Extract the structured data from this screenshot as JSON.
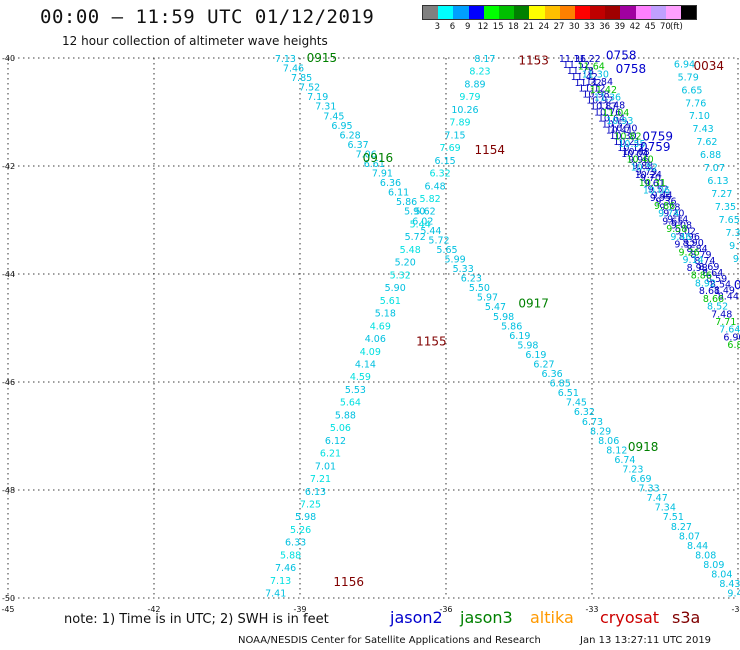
{
  "header": {
    "title": "00:00 – 11:59 UTC 01/12/2019",
    "subtitle": "12 hour collection of altimeter wave heights"
  },
  "color_scale": {
    "colors": [
      "#808080",
      "#00ffff",
      "#00a0ff",
      "#0000ff",
      "#00ff00",
      "#00c000",
      "#008000",
      "#ffff00",
      "#ffc000",
      "#ff8000",
      "#ff0000",
      "#c00000",
      "#a00000",
      "#a000a0",
      "#ff80ff",
      "#c0a0ff",
      "#ffa0ff",
      "#000000"
    ],
    "labels": [
      "3",
      "6",
      "9",
      "12",
      "15",
      "18",
      "21",
      "24",
      "27",
      "30",
      "33",
      "36",
      "39",
      "42",
      "45",
      "70",
      "(ft)"
    ]
  },
  "footer": {
    "note": "note: 1) Time is in UTC; 2) SWH is in feet",
    "legend": [
      {
        "name": "jason2",
        "color": "#0000cc"
      },
      {
        "name": "jason3",
        "color": "#008000"
      },
      {
        "name": "altika",
        "color": "#ff9900"
      },
      {
        "name": "cryosat",
        "color": "#cc0000"
      },
      {
        "name": "s3a",
        "color": "#800000"
      }
    ],
    "credit": "NOAA/NESDIS Center for Satellite Applications and Research",
    "timestamp": "Jan 13 13:27:11 UTC 2019"
  },
  "chart_data": {
    "type": "scatter",
    "xlim": [
      -45,
      -30
    ],
    "ylim": [
      -50,
      -40
    ],
    "grid": true,
    "x_ticks": [
      "-45",
      "-42",
      "-39",
      "-36",
      "-33",
      "-30"
    ],
    "y_ticks": [
      "-40",
      "-42",
      "-44",
      "-46",
      "-48",
      "-50"
    ],
    "tracks": [
      {
        "colors": [
          "#00c0e0"
        ],
        "start": [
          -39.3,
          -40.0
        ],
        "end": [
          -30.0,
          -49.9
        ],
        "values": [
          "7.13",
          "7.46",
          "7.85",
          "7.52",
          "7.19",
          "7.31",
          "7.45",
          "6.95",
          "6.28",
          "6.37",
          "7.06",
          "6.61",
          "7.91",
          "6.36",
          "6.11",
          "5.86",
          "5.90",
          "6.02",
          "5.44",
          "5.72",
          "5.65",
          "5.99",
          "5.33",
          "6.23",
          "5.50",
          "5.97",
          "5.47",
          "5.98",
          "5.86",
          "6.19",
          "5.98",
          "6.19",
          "6.27",
          "6.36",
          "6.85",
          "6.51",
          "7.45",
          "6.32",
          "6.73",
          "8.29",
          "8.06",
          "8.12",
          "6.74",
          "7.23",
          "6.69",
          "7.33",
          "7.47",
          "7.34",
          "7.51",
          "8.27",
          "8.07",
          "8.44",
          "8.08",
          "8.09",
          "8.04",
          "8.43",
          "9.40"
        ],
        "labels": [
          {
            "text": "0915",
            "color": "#008000",
            "at": [
              -38.55,
              -40.0
            ]
          },
          {
            "text": "0916",
            "color": "#008000",
            "at": [
              -37.4,
              -41.85
            ]
          },
          {
            "text": "0917",
            "color": "#008000",
            "at": [
              -34.2,
              -44.55
            ]
          },
          {
            "text": "0918",
            "color": "#008000",
            "at": [
              -31.95,
              -47.2
            ]
          }
        ]
      },
      {
        "colors": [
          "#00c0e0",
          "#00e0e0"
        ],
        "start": [
          -35.2,
          -40.0
        ],
        "end": [
          -39.5,
          -49.9
        ],
        "values": [
          "8.17",
          "8.23",
          "8.89",
          "9.79",
          "10.26",
          "7.89",
          "7.15",
          "7.69",
          "6.15",
          "6.32",
          "6.48",
          "5.82",
          "5.62",
          "5.44",
          "5.72",
          "5.48",
          "5.20",
          "5.32",
          "5.90",
          "5.61",
          "5.18",
          "4.69",
          "4.06",
          "4.09",
          "4.14",
          "4.59",
          "5.53",
          "5.64",
          "5.88",
          "5.06",
          "6.12",
          "6.21",
          "7.01",
          "7.21",
          "6.13",
          "7.25",
          "5.98",
          "5.26",
          "6.33",
          "5.88",
          "7.46",
          "7.13",
          "7.41"
        ],
        "labels": [
          {
            "text": "1154",
            "color": "#800000",
            "at": [
              -35.1,
              -41.7
            ]
          },
          {
            "text": "1155",
            "color": "#800000",
            "at": [
              -36.3,
              -45.25
            ]
          },
          {
            "text": "1156",
            "color": "#800000",
            "at": [
              -38.0,
              -49.7
            ]
          }
        ]
      },
      {
        "colors": [
          "#0000c0"
        ],
        "start": [
          -33.4,
          -40.0
        ],
        "end": [
          -30.2,
          -44.4
        ],
        "values": [
          "11.36",
          "11.52",
          "11.78",
          "11.42",
          "11.32",
          "11.12",
          "10.98",
          "10.92",
          "10.87",
          "10.76",
          "10.64",
          "10.52",
          "10.41",
          "10.30",
          "10.21",
          "10.12",
          "10.04",
          "9.96",
          "9.88",
          "9.79",
          "9.70",
          "9.61",
          "9.52",
          "9.44",
          "9.36",
          "9.28",
          "9.20",
          "9.14",
          "9.08",
          "9.02",
          "8.96",
          "8.90",
          "8.84",
          "8.79",
          "8.74",
          "8.69",
          "8.64",
          "8.59",
          "8.54",
          "8.49",
          "8.44"
        ],
        "labels": [
          {
            "text": "0758",
            "color": "#0000cc",
            "at": [
              -32.4,
              -39.95
            ]
          },
          {
            "text": "0759",
            "color": "#0000cc",
            "at": [
              -31.65,
              -41.45
            ]
          },
          {
            "text": "080",
            "color": "#0000cc",
            "at": [
              -29.85,
              -44.2
            ]
          }
        ]
      },
      {
        "colors": [
          "#0000c0",
          "#00c000",
          "#00c0e0"
        ],
        "start": [
          -33.1,
          -40.0
        ],
        "end": [
          -30.0,
          -45.3
        ],
        "values": [
          "11.22",
          "11.64",
          "11.30",
          "11.84",
          "11.42",
          "11.36",
          "11.48",
          "11.04",
          "10.93",
          "10.70",
          "10.82",
          "10.55",
          "10.68",
          "10.40",
          "10.52",
          "10.24",
          "10.31",
          "10.06",
          "9.95",
          "9.86",
          "9.74",
          "9.65",
          "9.58",
          "9.46",
          "9.32",
          "9.26",
          "9.14",
          "8.98",
          "8.86",
          "8.92",
          "8.61",
          "8.66",
          "8.52",
          "7.48",
          "7.71",
          "7.64",
          "6.90",
          "6.80"
        ],
        "labels": [
          {
            "text": "1153",
            "color": "#800000",
            "at": [
              -34.2,
              -40.05
            ]
          },
          {
            "text": "0758",
            "color": "#0000cc",
            "at": [
              -32.2,
              -40.2
            ]
          },
          {
            "text": "0759",
            "color": "#0000cc",
            "at": [
              -31.7,
              -41.65
            ]
          }
        ]
      },
      {
        "colors": [
          "#00c0e0"
        ],
        "start": [
          -31.1,
          -40.1
        ],
        "end": [
          -29.95,
          -43.7
        ],
        "values": [
          "6.94",
          "5.79",
          "6.65",
          "7.76",
          "7.10",
          "7.43",
          "7.62",
          "6.88",
          "7.07",
          "6.13",
          "7.27",
          "7.35",
          "7.65",
          "7.3",
          "9.7",
          "9.2"
        ],
        "labels": [
          {
            "text": "0034",
            "color": "#800000",
            "at": [
              -30.6,
              -40.15
            ]
          }
        ]
      }
    ]
  }
}
